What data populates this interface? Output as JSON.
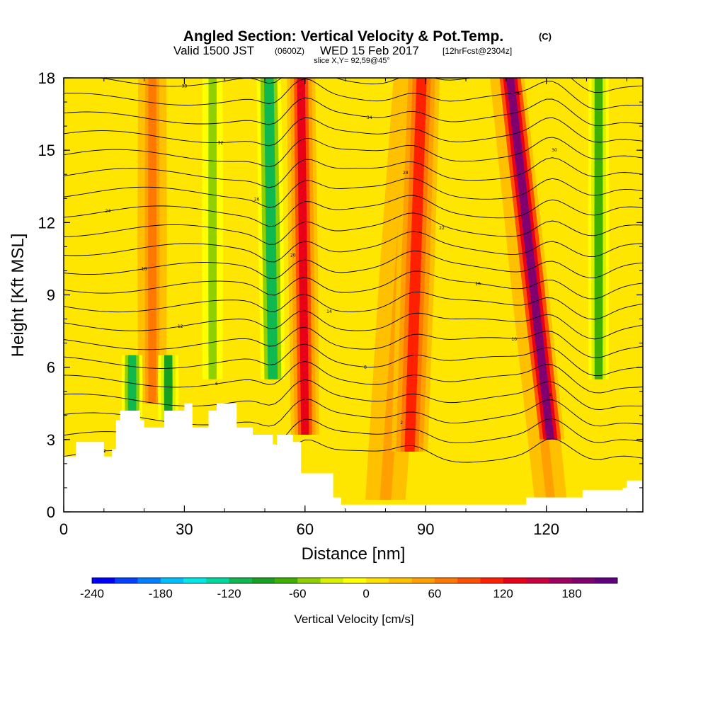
{
  "title": {
    "main": "Angled Section: Vertical Velocity & Pot.Temp.",
    "main_unit": "(C)",
    "valid_prefix": "Valid 1500 JST",
    "valid_utc": "(0600Z)",
    "valid_date": "WED 15 Feb 2017",
    "forecast": "[12hrFcst@2304z]",
    "slice": "slice X,Y= 92,59@45°"
  },
  "colorbar": {
    "title": "Vertical Velocity [cm/s]",
    "tick_labels": [
      "-240",
      "-180",
      "-120",
      "-60",
      "0",
      "60",
      "120",
      "180"
    ],
    "colors": [
      "#0000ff",
      "#0040ff",
      "#0080ff",
      "#00c0ff",
      "#00e8e8",
      "#00d8a0",
      "#10b850",
      "#18a020",
      "#40b000",
      "#90d000",
      "#d8f000",
      "#ffff00",
      "#ffe000",
      "#ffc000",
      "#ffa000",
      "#ff7800",
      "#ff5000",
      "#ff2000",
      "#e80018",
      "#c80040",
      "#a00060",
      "#800070",
      "#600080"
    ]
  },
  "chart_data": {
    "type": "heatmap",
    "xlabel": "Distance [nm]",
    "ylabel": "Height [Kft MSL]",
    "xlim": [
      0,
      144
    ],
    "ylim": [
      0,
      18
    ],
    "xticks": [
      0,
      30,
      60,
      90,
      120
    ],
    "yticks": [
      0,
      3,
      6,
      9,
      12,
      15,
      18
    ],
    "field": "Vertical Velocity [cm/s]",
    "contour_field": "Potential Temperature (C)",
    "updraft_bands": [
      {
        "x_center": 22,
        "x_top": 22,
        "peak": 50
      },
      {
        "x_center": 60,
        "x_top": 59,
        "peak": 120
      },
      {
        "x_center": 86,
        "x_top": 89,
        "peak": 95
      },
      {
        "x_center": 121,
        "x_top": 111,
        "peak": 180
      }
    ],
    "downdraft_bands": [
      {
        "x_center": 17,
        "peak": -120
      },
      {
        "x_center": 26,
        "peak": -100
      },
      {
        "x_center": 37,
        "peak": -60
      },
      {
        "x_center": 52,
        "peak": -120
      },
      {
        "x_center": 133,
        "peak": -80
      }
    ],
    "terrain_profile": [
      {
        "x": 0,
        "y": 2.3
      },
      {
        "x": 3,
        "y": 2.9
      },
      {
        "x": 8,
        "y": 2.9
      },
      {
        "x": 10,
        "y": 2.3
      },
      {
        "x": 12,
        "y": 2.6
      },
      {
        "x": 13,
        "y": 3.8
      },
      {
        "x": 14,
        "y": 4.2
      },
      {
        "x": 19,
        "y": 3.8
      },
      {
        "x": 20,
        "y": 3.5
      },
      {
        "x": 24,
        "y": 3.5
      },
      {
        "x": 25,
        "y": 4.2
      },
      {
        "x": 30,
        "y": 4.5
      },
      {
        "x": 32,
        "y": 3.5
      },
      {
        "x": 36,
        "y": 4.2
      },
      {
        "x": 38,
        "y": 4.5
      },
      {
        "x": 41,
        "y": 4.5
      },
      {
        "x": 43,
        "y": 3.5
      },
      {
        "x": 47,
        "y": 3.2
      },
      {
        "x": 52,
        "y": 2.8
      },
      {
        "x": 53,
        "y": 3.2
      },
      {
        "x": 57,
        "y": 2.9
      },
      {
        "x": 59,
        "y": 1.6
      },
      {
        "x": 63,
        "y": 1.6
      },
      {
        "x": 67,
        "y": 0.6
      },
      {
        "x": 69,
        "y": 0.3
      },
      {
        "x": 114,
        "y": 0.3
      },
      {
        "x": 115,
        "y": 0.6
      },
      {
        "x": 128,
        "y": 0.6
      },
      {
        "x": 129,
        "y": 0.9
      },
      {
        "x": 139,
        "y": 1.0
      },
      {
        "x": 140,
        "y": 1.3
      },
      {
        "x": 144,
        "y": 1.3
      }
    ],
    "isentrope_labels": [
      "-2",
      "0",
      "2",
      "4",
      "6",
      "8",
      "10",
      "12",
      "14",
      "16",
      "18",
      "20",
      "22",
      "24",
      "26",
      "28",
      "30",
      "32",
      "34",
      "36",
      "38",
      "40"
    ]
  }
}
